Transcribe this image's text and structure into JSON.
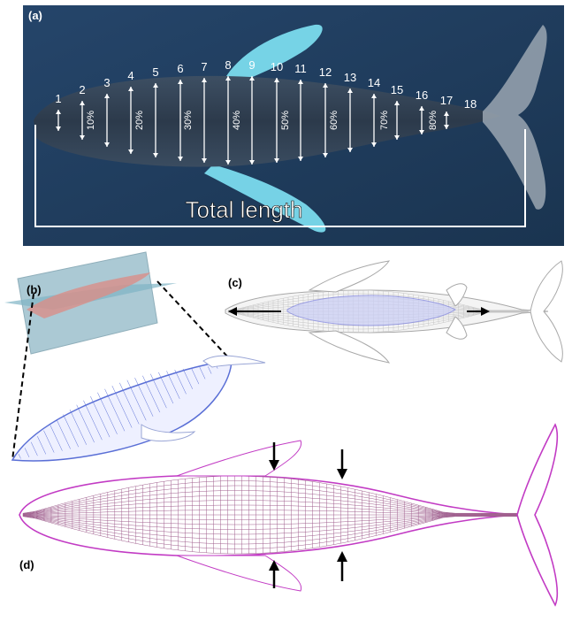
{
  "panels": {
    "a": {
      "label": "(a)",
      "total_length_label": "Total length",
      "station_numbers": [
        "1",
        "2",
        "3",
        "4",
        "5",
        "6",
        "7",
        "8",
        "9",
        "10",
        "11",
        "12",
        "13",
        "14",
        "15",
        "16",
        "17",
        "18"
      ],
      "percent_labels": [
        "10%",
        "20%",
        "30%",
        "40%",
        "50%",
        "60%",
        "70%",
        "80%"
      ],
      "colors": {
        "water": "#1e3a57",
        "fin": "#7fe3f5",
        "text": "#ffffff"
      }
    },
    "b": {
      "label": "(b)",
      "colors": {
        "plane": "#8fb8c6",
        "mesh": "#5a6fd6"
      }
    },
    "c": {
      "label": "(c)",
      "colors": {
        "outline": "#a8a8a8",
        "mesh": "#7a7fe0",
        "arrow": "#000000"
      }
    },
    "d": {
      "label": "(d)",
      "colors": {
        "outline": "#c23bc4",
        "mesh_old": "#8a8a8a",
        "arrow": "#000000"
      }
    }
  }
}
